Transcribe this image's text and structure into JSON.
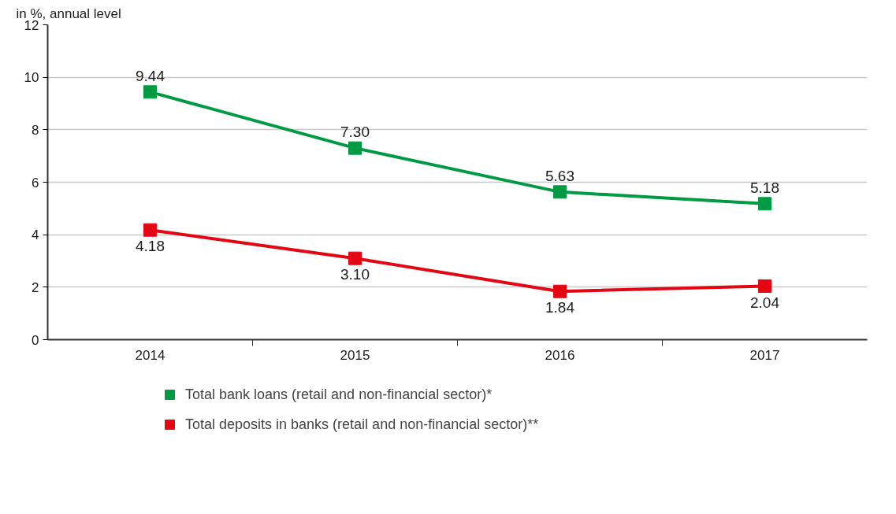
{
  "chart_data": {
    "type": "line",
    "ylabel": "in %, annual level",
    "categories": [
      "2014",
      "2015",
      "2016",
      "2017"
    ],
    "series": [
      {
        "name": "Total bank loans (retail and non-financial sector)*",
        "color": "#009a44",
        "values": [
          9.44,
          7.3,
          5.63,
          5.18
        ]
      },
      {
        "name": "Total deposits in banks (retail and non-financial sector)**",
        "color": "#e30613",
        "values": [
          4.18,
          3.1,
          1.84,
          2.04
        ]
      }
    ],
    "value_labels": [
      [
        "9.44",
        "7.30",
        "5.63",
        "5.18"
      ],
      [
        "4.18",
        "3.10",
        "1.84",
        "2.04"
      ]
    ],
    "ylim": [
      0,
      12
    ],
    "yticks": [
      0,
      2,
      4,
      6,
      8,
      10,
      12
    ],
    "grid": "y",
    "legend": "bottom",
    "marker": "square",
    "line_style": "solid"
  }
}
